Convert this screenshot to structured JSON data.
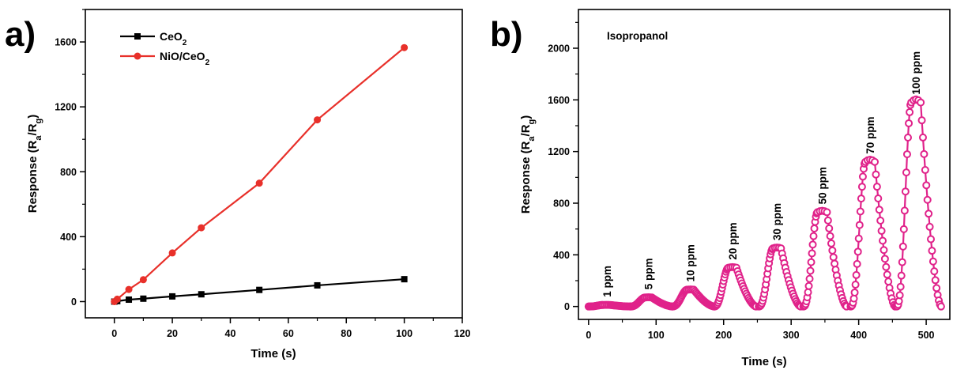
{
  "chart_data": [
    {
      "panel": "a)",
      "type": "line",
      "xlabel": "Time (s)",
      "ylabel": {
        "main": "Response (R",
        "sub_a": "a",
        "mid": "/R",
        "sub_g": "g",
        "end": ")"
      },
      "xlim": [
        -10,
        120
      ],
      "ylim": [
        -100,
        1800
      ],
      "xticks": [
        0,
        20,
        40,
        60,
        80,
        100,
        120
      ],
      "yticks": [
        0,
        400,
        800,
        1200,
        1600
      ],
      "x": [
        0,
        1,
        5,
        10,
        20,
        30,
        50,
        70,
        100
      ],
      "series": [
        {
          "name": "CeO",
          "name_sub": "2",
          "color": "#000000",
          "marker": "square",
          "values": [
            0,
            3,
            12,
            18,
            32,
            45,
            72,
            100,
            138
          ]
        },
        {
          "name": "NiO/CeO",
          "name_sub": "2",
          "color": "#e8302a",
          "marker": "circle",
          "values": [
            0,
            15,
            75,
            135,
            300,
            455,
            730,
            1120,
            1565
          ]
        }
      ],
      "legend": "top-left"
    },
    {
      "panel": "b)",
      "type": "line",
      "title": "Isopropanol",
      "xlabel": "Time (s)",
      "ylabel": {
        "main": "Response (R",
        "sub_a": "a",
        "mid": "/R",
        "sub_g": "g",
        "end": ")"
      },
      "xlim": [
        -15,
        535
      ],
      "ylim": [
        -100,
        2300
      ],
      "xticks": [
        0,
        100,
        200,
        300,
        400,
        500
      ],
      "yticks": [
        0,
        400,
        800,
        1200,
        1600,
        2000
      ],
      "color": "#e0228a",
      "marker": "circle-open",
      "pulses": [
        {
          "label": "1 ppm",
          "start": 0,
          "peak": 12,
          "dur": 62,
          "plateau": 10
        },
        {
          "label": "5 ppm",
          "start": 62,
          "peak": 70,
          "dur": 62,
          "plateau": 10
        },
        {
          "label": "10 ppm",
          "start": 124,
          "peak": 130,
          "dur": 62,
          "plateau": 10
        },
        {
          "label": "20 ppm",
          "start": 186,
          "peak": 300,
          "dur": 62,
          "plateau": 12
        },
        {
          "label": "30 ppm",
          "start": 252,
          "peak": 450,
          "dur": 62,
          "plateau": 12
        },
        {
          "label": "50 ppm",
          "start": 318,
          "peak": 730,
          "dur": 64,
          "plateau": 14
        },
        {
          "label": "70 ppm",
          "start": 388,
          "peak": 1120,
          "dur": 66,
          "plateau": 14
        },
        {
          "label": "100 ppm",
          "start": 456,
          "peak": 1580,
          "dur": 66,
          "plateau": 14
        }
      ],
      "tail_end": 520
    }
  ]
}
